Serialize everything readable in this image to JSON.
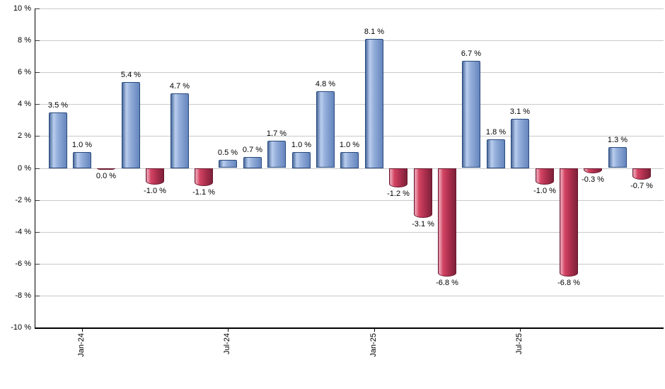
{
  "chart_data": {
    "type": "bar",
    "title": "",
    "xlabel": "",
    "ylabel": "",
    "unit": "%",
    "ylim": [
      -10,
      10
    ],
    "grid": true,
    "gridline_step": 2,
    "y_tick_labels": [
      "10 %",
      "8 %",
      "6 %",
      "4 %",
      "2 %",
      "0 %",
      "-2 %",
      "-4 %",
      "-6 %",
      "-8 %",
      "-10 %"
    ],
    "y_tick_values": [
      10,
      8,
      6,
      4,
      2,
      0,
      -2,
      -4,
      -6,
      -8,
      -10
    ],
    "x_tick_labels": [
      {
        "label": "Jan-24",
        "bar_index": 1
      },
      {
        "label": "Jul-24",
        "bar_index": 7
      },
      {
        "label": "Jan-25",
        "bar_index": 13
      },
      {
        "label": "Jul-25",
        "bar_index": 19
      }
    ],
    "values": [
      3.5,
      1.0,
      0.0,
      5.4,
      -1.0,
      4.7,
      -1.1,
      0.5,
      0.7,
      1.7,
      1.0,
      4.8,
      1.0,
      8.1,
      -1.2,
      -3.1,
      -6.8,
      6.7,
      1.8,
      3.1,
      -1.0,
      -6.8,
      -0.3,
      1.3,
      -0.7
    ],
    "bar_labels": [
      "3.5 %",
      "1.0 %",
      "0.0 %",
      "5.4 %",
      "-1.0 %",
      "4.7 %",
      "-1.1 %",
      "0.5 %",
      "0.7 %",
      "1.7 %",
      "1.0 %",
      "4.8 %",
      "1.0 %",
      "8.1 %",
      "-1.2 %",
      "-3.1 %",
      "-6.8 %",
      "6.7 %",
      "1.8 %",
      "3.1 %",
      "-1.0 %",
      "-6.8 %",
      "-0.3 %",
      "1.3 %",
      "-0.7 %"
    ],
    "bar_colors": [
      "blue",
      "blue",
      "red",
      "blue",
      "red",
      "blue",
      "red",
      "blue",
      "blue",
      "blue",
      "blue",
      "blue",
      "blue",
      "blue",
      "red",
      "red",
      "red",
      "blue",
      "blue",
      "blue",
      "red",
      "red",
      "red",
      "blue",
      "red"
    ],
    "colors": {
      "positive_bar": "#6585bd",
      "positive_border": "#27497c",
      "negative_bar": "#d44463",
      "negative_border": "#69172e",
      "gridline": "#c9c9c9",
      "axis": "#000000",
      "label_text": "#000000",
      "background": "#ffffff"
    },
    "legend": null
  }
}
